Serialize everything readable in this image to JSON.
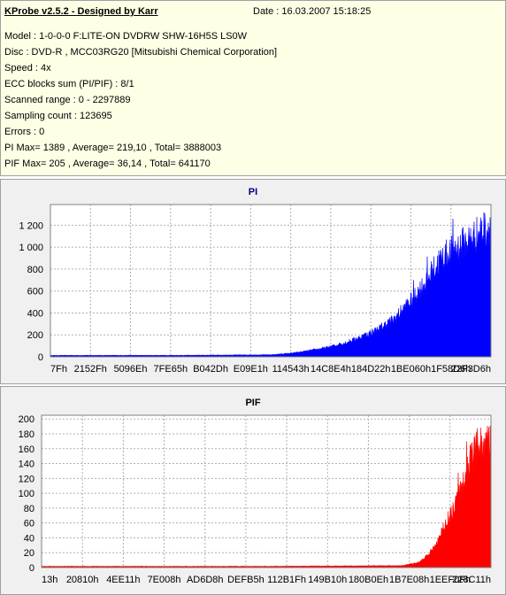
{
  "info": {
    "title": "KProbe v2.5.2 - Designed by Karr",
    "date": "Date : 16.03.2007 15:18:25",
    "lines": [
      "Model : 1-0-0-0 F:LITE-ON DVDRW SHW-16H5S  LS0W",
      "Disc : DVD-R , MCC03RG20 [Mitsubishi Chemical Corporation]",
      "Speed : 4x",
      "ECC blocks sum (PI/PIF) : 8/1",
      "Scanned range : 0 - 2297889",
      "Sampling count : 123695",
      "Errors : 0",
      "PI Max= 1389 , Average= 219,10 , Total= 3888003",
      "PIF Max= 205 , Average= 36,14 , Total= 641170"
    ]
  },
  "chart_data": [
    {
      "type": "area",
      "title": "PI",
      "color": "#0000ff",
      "ylim": [
        0,
        1389
      ],
      "yticks": [
        0,
        200,
        400,
        600,
        800,
        1000,
        1200
      ],
      "ytick_labels": [
        "0",
        "200",
        "400",
        "600",
        "800",
        "1 000",
        "1 200"
      ],
      "xticks": [
        "7Fh",
        "2152Fh",
        "5096Eh",
        "7FE65h",
        "B042Dh",
        "E09E1h",
        "114543h",
        "14C8E4h",
        "184D22h",
        "1BE060h",
        "1F58D6h",
        "22F3D6h"
      ],
      "grid": true,
      "envelope": [
        [
          0,
          15
        ],
        [
          0.3,
          16
        ],
        [
          0.5,
          22
        ],
        [
          0.55,
          40
        ],
        [
          0.58,
          60
        ],
        [
          0.63,
          100
        ],
        [
          0.67,
          150
        ],
        [
          0.7,
          200
        ],
        [
          0.74,
          280
        ],
        [
          0.78,
          400
        ],
        [
          0.8,
          500
        ],
        [
          0.82,
          600
        ],
        [
          0.84,
          720
        ],
        [
          0.86,
          850
        ],
        [
          0.88,
          1000
        ],
        [
          0.9,
          1080
        ],
        [
          0.92,
          1150
        ],
        [
          0.94,
          1200
        ],
        [
          0.96,
          1260
        ],
        [
          0.98,
          1330
        ],
        [
          1,
          1389
        ]
      ]
    },
    {
      "type": "area",
      "title": "PIF",
      "color": "#ff0000",
      "ylim": [
        0,
        205
      ],
      "yticks": [
        0,
        20,
        40,
        60,
        80,
        100,
        120,
        140,
        160,
        180,
        200
      ],
      "ytick_labels": [
        "0",
        "20",
        "40",
        "60",
        "80",
        "100",
        "120",
        "140",
        "160",
        "180",
        "200"
      ],
      "xticks": [
        "13h",
        "20810h",
        "4EE11h",
        "7E008h",
        "AD6D8h",
        "DEFB5h",
        "112B1Fh",
        "149B10h",
        "180B0Eh",
        "1B7E08h",
        "1EEF0Fh",
        "228C11h"
      ],
      "grid": true,
      "envelope": [
        [
          0,
          2
        ],
        [
          0.5,
          2
        ],
        [
          0.8,
          3
        ],
        [
          0.84,
          8
        ],
        [
          0.86,
          20
        ],
        [
          0.88,
          40
        ],
        [
          0.9,
          70
        ],
        [
          0.92,
          100
        ],
        [
          0.94,
          140
        ],
        [
          0.96,
          180
        ],
        [
          0.98,
          200
        ],
        [
          1,
          195
        ]
      ]
    }
  ]
}
